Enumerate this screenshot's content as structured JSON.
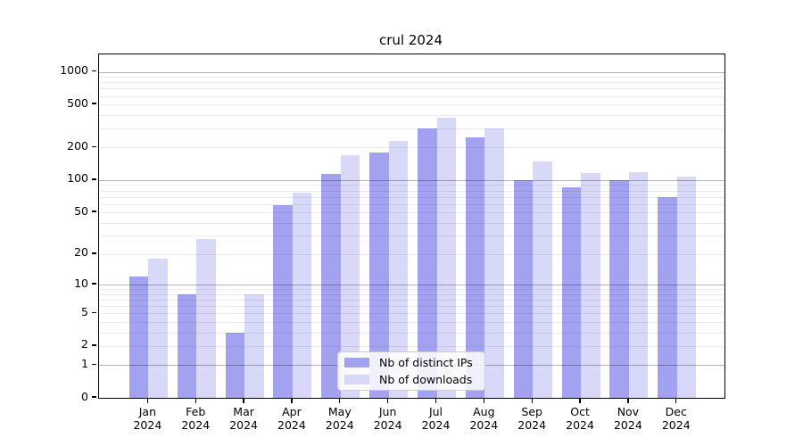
{
  "title": "crul 2024",
  "legend": {
    "items": [
      {
        "label": "Nb of distinct IPs",
        "color": "#a2a2f0"
      },
      {
        "label": "Nb of downloads",
        "color": "#d8d8f8"
      }
    ]
  },
  "chart_data": {
    "type": "bar",
    "title": "crul 2024",
    "categories": [
      "Jan 2024",
      "Feb 2024",
      "Mar 2024",
      "Apr 2024",
      "May 2024",
      "Jun 2024",
      "Jul 2024",
      "Aug 2024",
      "Sep 2024",
      "Oct 2024",
      "Nov 2024",
      "Dec 2024"
    ],
    "series": [
      {
        "name": "Nb of distinct IPs",
        "color": "#a2a2f0",
        "values": [
          12,
          8,
          3,
          58,
          115,
          180,
          298,
          250,
          100,
          85,
          100,
          69
        ]
      },
      {
        "name": "Nb of downloads",
        "color": "#d8d8f8",
        "values": [
          18,
          28,
          8,
          77,
          170,
          230,
          375,
          298,
          150,
          116,
          118,
          107
        ]
      }
    ],
    "xlabel": "",
    "ylabel": "",
    "yscale": "log1p",
    "ylim": [
      0,
      1450
    ],
    "yticks": [
      0,
      1,
      2,
      5,
      10,
      20,
      50,
      100,
      200,
      500,
      1000
    ],
    "ytick_labels": [
      "0",
      "1",
      "2",
      "5",
      "10",
      "20",
      "50",
      "100",
      "200",
      "500",
      "1000"
    ],
    "grid": {
      "major_lines": [
        1,
        10,
        100,
        1000
      ],
      "minor_lines_per_decade": [
        2,
        3,
        4,
        5,
        6,
        7,
        8,
        9
      ],
      "shown": true,
      "drawn_over_bars": true
    },
    "legend_position": "lower center"
  }
}
